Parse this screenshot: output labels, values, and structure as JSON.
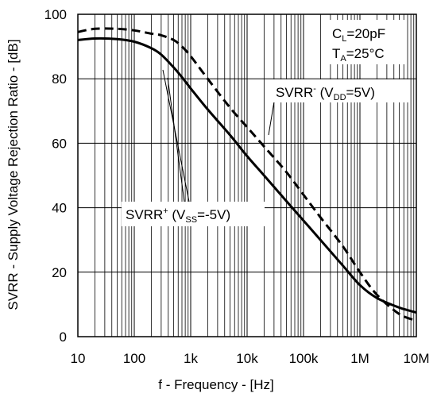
{
  "chart_data": {
    "type": "line",
    "xlabel": "f - Frequency - [Hz]",
    "ylabel": "SVRR - Supply Voltage Rejection Ratio - [dB]",
    "x_scale": "log",
    "xlim": [
      10,
      10000000
    ],
    "ylim": [
      0,
      100
    ],
    "x_ticks": [
      10,
      100,
      1000,
      10000,
      100000,
      1000000,
      10000000
    ],
    "x_tick_labels": [
      "10",
      "100",
      "1k",
      "10k",
      "100k",
      "1M",
      "10M"
    ],
    "y_ticks": [
      0,
      20,
      40,
      60,
      80,
      100
    ],
    "y_tick_labels": [
      "0",
      "20",
      "40",
      "60",
      "80",
      "100"
    ],
    "grid": true,
    "conditions": [
      {
        "main": "C",
        "sub": "L",
        "rest": "=20pF"
      },
      {
        "main": "T",
        "sub": "A",
        "rest": "=25°C"
      }
    ],
    "series": [
      {
        "label_main": "SVRR",
        "label_sup": "+",
        "label_open": " (V",
        "label_sub": "SS",
        "label_rest": "=-5V)",
        "style": "solid",
        "color": "#000000",
        "x": [
          10,
          20,
          50,
          100,
          200,
          300,
          500,
          700,
          1000,
          2000,
          5000,
          10000,
          20000,
          50000,
          100000,
          200000,
          500000,
          1000000,
          2000000,
          5000000,
          10000000
        ],
        "y": [
          92,
          92.5,
          92.3,
          91.5,
          89.5,
          87.5,
          83.5,
          80.5,
          77,
          70.5,
          62.5,
          56,
          50,
          42,
          36,
          30,
          22,
          16,
          12,
          9,
          7.5
        ]
      },
      {
        "label_main": "SVRR",
        "label_sup": "-",
        "label_open": " (V",
        "label_sub": "DD",
        "label_rest": "=5V)",
        "style": "dashed",
        "color": "#000000",
        "x": [
          10,
          20,
          50,
          100,
          200,
          300,
          500,
          700,
          1000,
          2000,
          5000,
          10000,
          20000,
          50000,
          100000,
          200000,
          500000,
          1000000,
          2000000,
          5000000,
          10000000
        ],
        "y": [
          94.5,
          95.5,
          95.5,
          95,
          94,
          93.5,
          92,
          90,
          87,
          80,
          71,
          65,
          59,
          51,
          44,
          37,
          28,
          20,
          13,
          7,
          5
        ]
      }
    ]
  }
}
